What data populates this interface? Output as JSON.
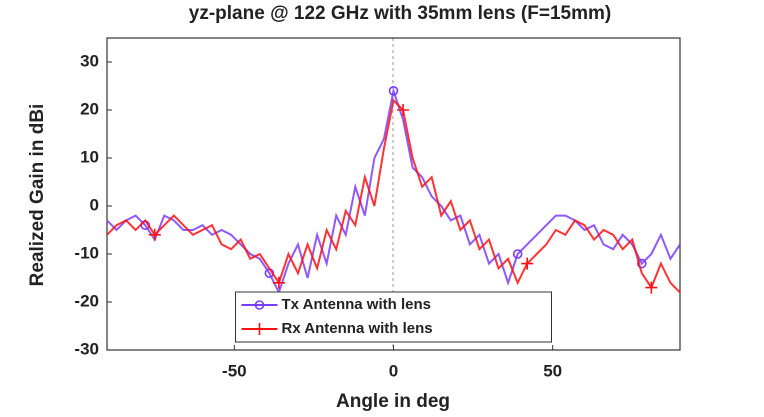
{
  "chart_data": {
    "type": "line",
    "title": "yz-plane @ 122 GHz with 35mm lens (F=15mm)",
    "xlabel": "Angle in deg",
    "ylabel": "Realized Gain in dBi",
    "x": [
      -90,
      -87,
      -84,
      -81,
      -78,
      -75,
      -72,
      -69,
      -66,
      -63,
      -60,
      -57,
      -54,
      -51,
      -48,
      -45,
      -42,
      -39,
      -36,
      -33,
      -30,
      -27,
      -24,
      -21,
      -18,
      -15,
      -12,
      -9,
      -6,
      -3,
      0,
      3,
      6,
      9,
      12,
      15,
      18,
      21,
      24,
      27,
      30,
      33,
      36,
      39,
      42,
      45,
      48,
      51,
      54,
      57,
      60,
      63,
      66,
      69,
      72,
      75,
      78,
      81,
      84,
      87,
      90
    ],
    "series": [
      {
        "name": "Tx Antenna with lens",
        "color": "#7a3cff",
        "marker": "circle",
        "values": [
          -3,
          -5,
          -3,
          -2,
          -4,
          -7,
          -2,
          -3,
          -5,
          -5,
          -4,
          -6,
          -5,
          -6,
          -8,
          -10,
          -11,
          -14,
          -18,
          -12,
          -8,
          -15,
          -6,
          -12,
          -2,
          -6,
          4,
          -2,
          10,
          14,
          24,
          18,
          8,
          6,
          2,
          0,
          -3,
          -2,
          -8,
          -6,
          -12,
          -10,
          -16,
          -10,
          -8,
          -6,
          -4,
          -2,
          -2,
          -3,
          -5,
          -4,
          -8,
          -9,
          -6,
          -8,
          -12,
          -10,
          -6,
          -11,
          -8
        ]
      },
      {
        "name": "Rx Antenna with lens",
        "color": "#ff1010",
        "marker": "plus",
        "values": [
          -6,
          -4,
          -3,
          -5,
          -3,
          -6,
          -4,
          -2,
          -4,
          -6,
          -5,
          -4,
          -8,
          -9,
          -7,
          -11,
          -10,
          -13,
          -16,
          -10,
          -14,
          -8,
          -13,
          -5,
          -9,
          -1,
          -4,
          6,
          0,
          12,
          22,
          20,
          10,
          4,
          6,
          -2,
          1,
          -5,
          -3,
          -9,
          -7,
          -13,
          -11,
          -16,
          -12,
          -10,
          -8,
          -5,
          -6,
          -3,
          -4,
          -7,
          -5,
          -6,
          -9,
          -7,
          -14,
          -17,
          -12,
          -16,
          -18
        ]
      }
    ],
    "xlim": [
      -90,
      90
    ],
    "ylim": [
      -30,
      35
    ],
    "xticks": [
      -50,
      0,
      50
    ],
    "yticks": [
      -30,
      -20,
      -10,
      0,
      10,
      20,
      30
    ],
    "grid": false,
    "legend": "lower center"
  }
}
